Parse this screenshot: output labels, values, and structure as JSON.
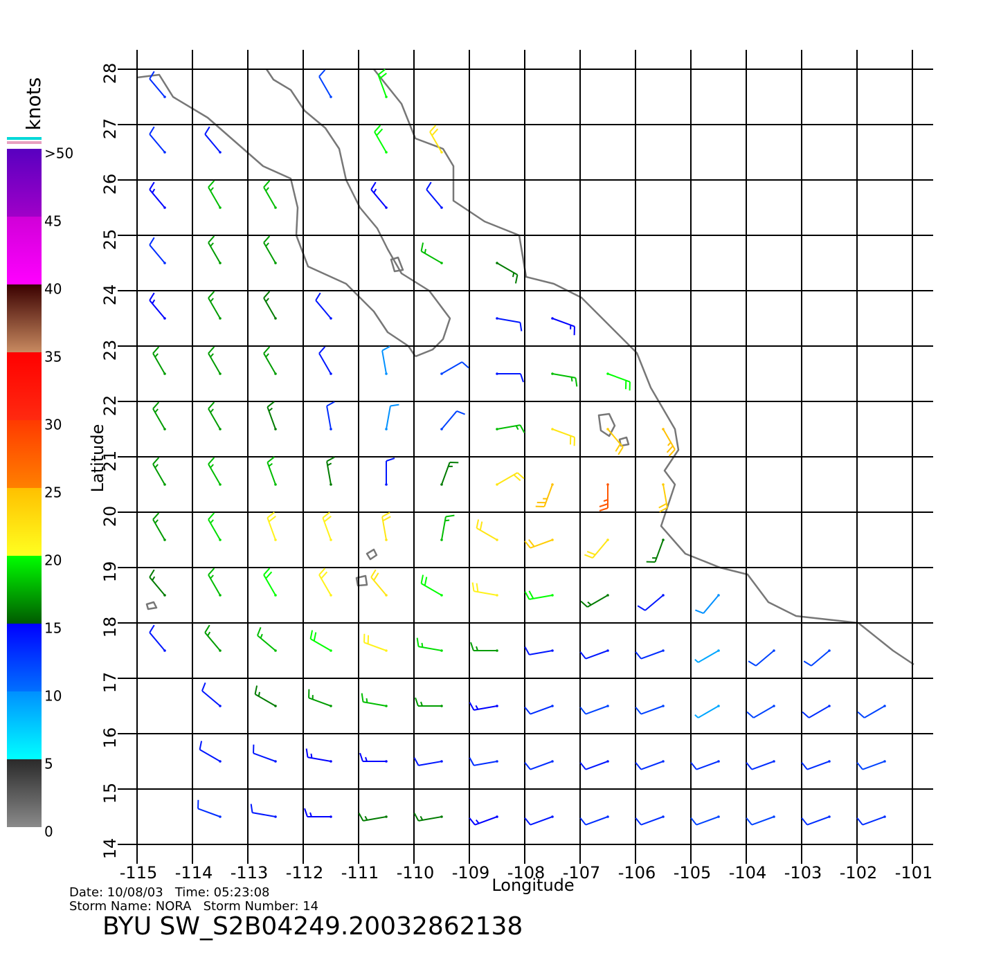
{
  "chart_data": {
    "type": "wind-barbs",
    "xlabel": "Longitude",
    "ylabel": "Latitude",
    "xlim": [
      -115,
      -100.6
    ],
    "ylim": [
      14,
      28
    ],
    "xticks": [
      -115,
      -114,
      -113,
      -112,
      -111,
      -110,
      -109,
      -108,
      -107,
      -106,
      -105,
      -104,
      -103,
      -102,
      -101
    ],
    "yticks": [
      14,
      15,
      16,
      17,
      18,
      19,
      20,
      21,
      22,
      23,
      24,
      25,
      26,
      27,
      28
    ],
    "grid": true,
    "colorbar": {
      "title": "knots",
      "ticks": [
        0,
        5,
        10,
        15,
        20,
        25,
        30,
        35,
        40,
        45,
        {
          "value": 50,
          "label": ">50"
        }
      ],
      "band_colors": [
        [
          "#8a8a8a",
          "#2a2a2a"
        ],
        [
          "#00ffff",
          "#0090ff"
        ],
        [
          "#0070ff",
          "#0000ff"
        ],
        [
          "#005a00",
          "#00ff00"
        ],
        [
          "#ffff20",
          "#ffc000"
        ],
        [
          "#ff8000",
          "#ff3a00"
        ],
        [
          "#ff2a10",
          "#ff0000"
        ],
        [
          "#c88a60",
          "#3a0000"
        ],
        [
          "#ff00ff",
          "#d000d8"
        ],
        [
          "#a000c8",
          "#5800c0"
        ]
      ]
    },
    "lon_centers": [
      -114.5,
      -113.5,
      -112.5,
      -111.5,
      -110.5,
      -109.5,
      -108.5,
      -107.5,
      -106.5,
      -105.5,
      -104.5,
      -103.5,
      -102.5,
      -101.5
    ],
    "lat_centers": [
      27.5,
      26.5,
      25.5,
      24.5,
      23.5,
      22.5,
      21.5,
      20.5,
      19.5,
      18.5,
      17.5,
      16.5,
      15.5,
      14.5
    ],
    "speed": [
      [
        13,
        null,
        null,
        12,
        20,
        null,
        null,
        null,
        null,
        null,
        null,
        null,
        null,
        null
      ],
      [
        13,
        14,
        null,
        null,
        20,
        22,
        null,
        null,
        null,
        null,
        null,
        null,
        null,
        null
      ],
      [
        15,
        18,
        18,
        null,
        15,
        14,
        null,
        null,
        null,
        null,
        null,
        null,
        null,
        null
      ],
      [
        13,
        17,
        17,
        null,
        null,
        18,
        16,
        null,
        null,
        null,
        null,
        null,
        null,
        null
      ],
      [
        15,
        17,
        16,
        14,
        null,
        null,
        14,
        15,
        null,
        null,
        null,
        null,
        null,
        null
      ],
      [
        17,
        17,
        17,
        14,
        10,
        12,
        14,
        18,
        20,
        null,
        null,
        null,
        null,
        null
      ],
      [
        17,
        17,
        16,
        13,
        10,
        12,
        18,
        22,
        24,
        25,
        null,
        null,
        null,
        null
      ],
      [
        17,
        18,
        18,
        16,
        14,
        16,
        22,
        25,
        28,
        24,
        null,
        null,
        null,
        null
      ],
      [
        17,
        19,
        21,
        21,
        22,
        18,
        22,
        24,
        22,
        16,
        null,
        null,
        null,
        null
      ],
      [
        16,
        18,
        20,
        21,
        22,
        20,
        21,
        20,
        16,
        14,
        10,
        null,
        null,
        null
      ],
      [
        14,
        17,
        18,
        20,
        21,
        19,
        17,
        14,
        14,
        13,
        9,
        12,
        12,
        null
      ],
      [
        null,
        14,
        16,
        17,
        18,
        17,
        15,
        13,
        12,
        12,
        9,
        12,
        13,
        12
      ],
      [
        null,
        14,
        14,
        15,
        15,
        14,
        13,
        13,
        14,
        13,
        13,
        13,
        13,
        12
      ],
      [
        null,
        13,
        14,
        15,
        16,
        16,
        15,
        14,
        13,
        13,
        12,
        12,
        13,
        13
      ]
    ],
    "direction": [
      [
        320,
        null,
        null,
        330,
        340,
        null,
        null,
        null,
        null,
        null,
        null,
        null,
        null,
        null
      ],
      [
        320,
        320,
        null,
        null,
        330,
        330,
        null,
        null,
        null,
        null,
        null,
        null,
        null,
        null
      ],
      [
        320,
        330,
        330,
        null,
        320,
        320,
        null,
        null,
        null,
        null,
        null,
        null,
        null,
        null
      ],
      [
        320,
        330,
        330,
        null,
        null,
        300,
        120,
        null,
        null,
        null,
        null,
        null,
        null,
        null
      ],
      [
        320,
        330,
        330,
        320,
        null,
        null,
        100,
        110,
        null,
        null,
        null,
        null,
        null,
        null
      ],
      [
        330,
        330,
        330,
        330,
        350,
        60,
        90,
        100,
        110,
        null,
        null,
        null,
        null,
        null
      ],
      [
        330,
        330,
        340,
        350,
        10,
        40,
        80,
        110,
        140,
        150,
        null,
        null,
        null,
        null
      ],
      [
        330,
        330,
        340,
        350,
        360,
        20,
        60,
        200,
        180,
        170,
        null,
        null,
        null,
        null
      ],
      [
        330,
        330,
        340,
        340,
        350,
        10,
        300,
        250,
        220,
        200,
        null,
        null,
        null,
        null
      ],
      [
        320,
        330,
        330,
        330,
        320,
        300,
        280,
        260,
        240,
        230,
        220,
        null,
        null,
        null
      ],
      [
        320,
        320,
        310,
        300,
        290,
        280,
        270,
        260,
        250,
        250,
        240,
        230,
        230,
        null
      ],
      [
        null,
        310,
        300,
        290,
        280,
        270,
        260,
        250,
        250,
        250,
        240,
        240,
        240,
        240
      ],
      [
        null,
        300,
        290,
        280,
        270,
        260,
        260,
        250,
        250,
        250,
        250,
        250,
        250,
        250
      ],
      [
        null,
        290,
        280,
        270,
        260,
        260,
        250,
        250,
        250,
        250,
        250,
        250,
        250,
        250
      ]
    ],
    "footer": [
      "Date: 10/08/03   Time: 05:23:08",
      "Storm Name: NORA   Storm Number: 14"
    ],
    "product": "BYU SW_S2B04249.20032862138"
  }
}
